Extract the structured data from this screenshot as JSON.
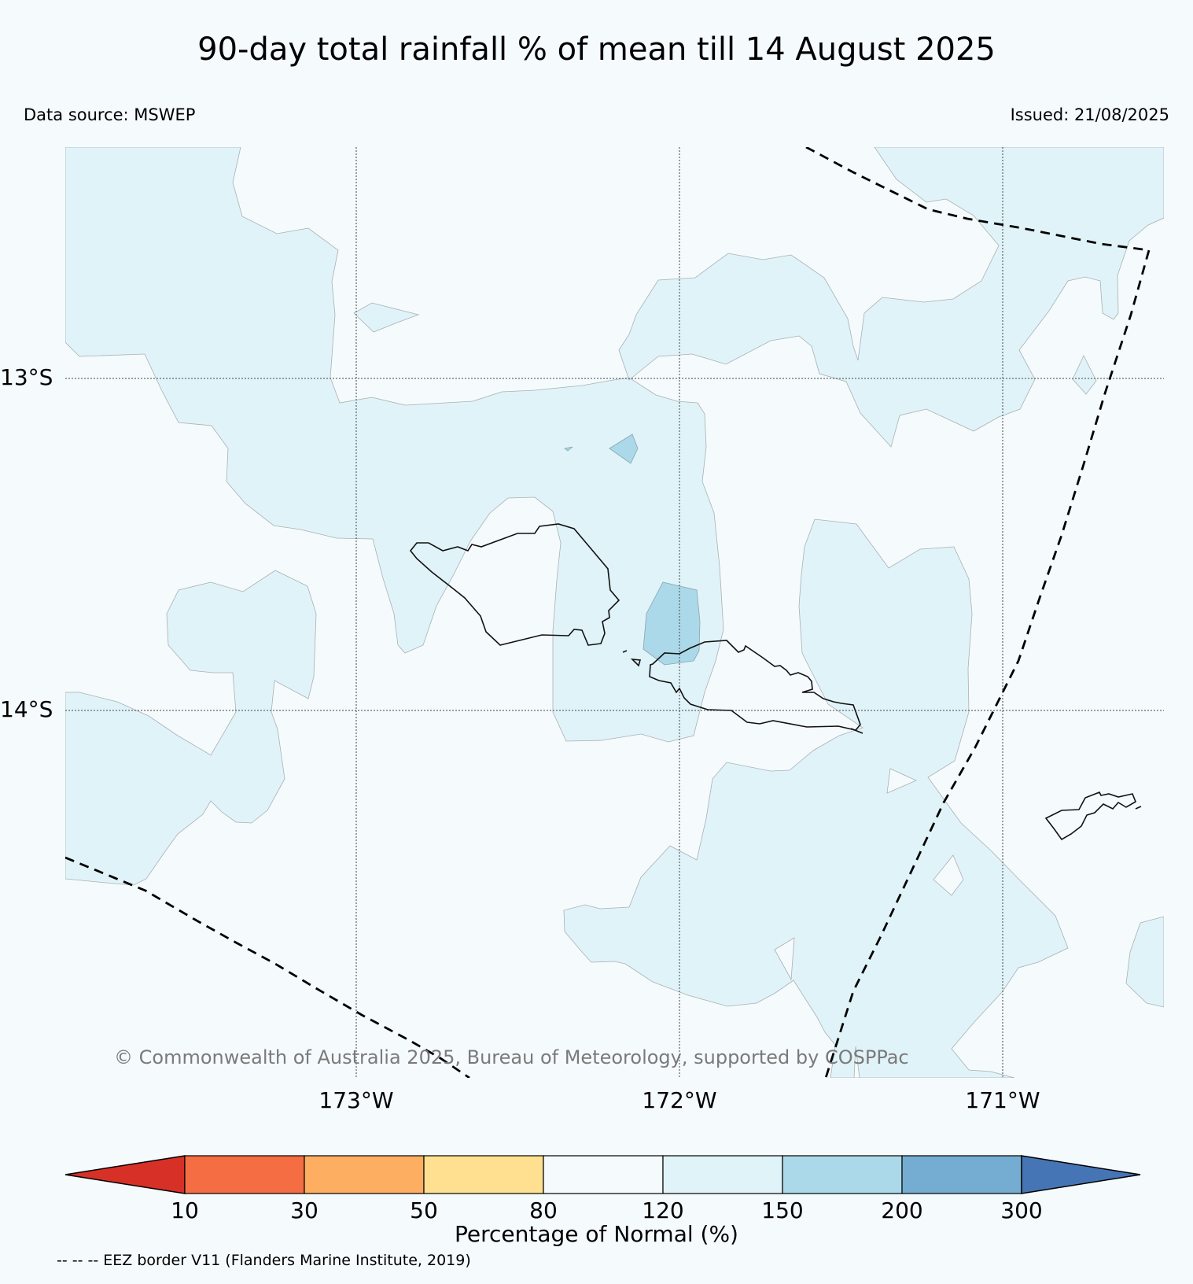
{
  "title": "90-day total rainfall % of mean till 14 August 2025",
  "data_source": "Data source: MSWEP",
  "issued": "Issued: 21/08/2025",
  "copyright": "© Commonwealth of Australia 2025, Bureau of Meteorology, supported by COSPPac",
  "lat_labels": [
    "13°S",
    "14°S"
  ],
  "lon_labels": [
    "173°W",
    "172°W",
    "171°W"
  ],
  "colorbar": {
    "title": "Percentage of Normal (%)",
    "ticks": [
      "10",
      "30",
      "50",
      "80",
      "120",
      "150",
      "200",
      "300"
    ],
    "colors": [
      "#d73027",
      "#f46d43",
      "#fdae61",
      "#fee090",
      "#f5fafd",
      "#e0f3f8",
      "#abd9e9",
      "#74add1",
      "#4575b4"
    ]
  },
  "legend_note": "-- -- -- EEZ border V11 (Flanders Marine Institute, 2019)"
}
